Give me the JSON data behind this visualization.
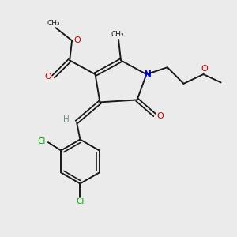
{
  "background_color": "#ebebeb",
  "bond_color": "#1a1a1a",
  "atom_colors": {
    "O": "#cc0000",
    "N": "#0000cc",
    "Cl": "#00aa00",
    "H": "#6e8b8b",
    "C": "#1a1a1a"
  },
  "figsize": [
    3.0,
    3.0
  ],
  "dpi": 100
}
